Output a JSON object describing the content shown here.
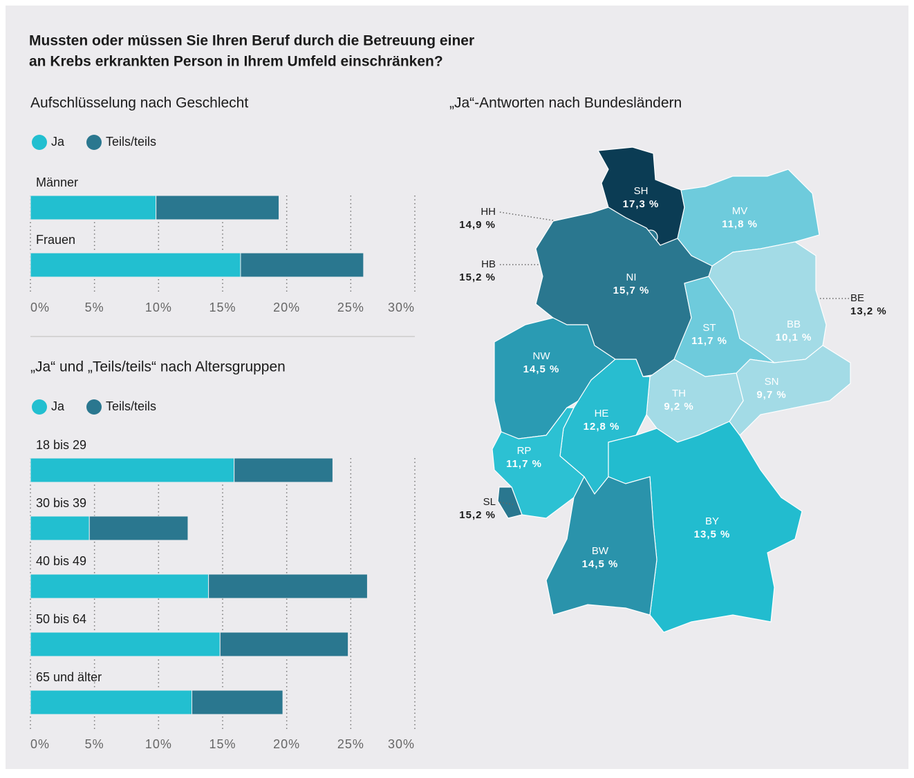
{
  "title": [
    "Mussten oder müssen Sie Ihren Beruf durch die Betreuung einer",
    "an Krebs erkrankten Person in Ihrem Umfeld einschränken?"
  ],
  "chart_data": [
    {
      "type": "bar",
      "orientation": "horizontal",
      "stacked": true,
      "subtitle": "Aufschlüsselung nach Geschlecht",
      "categories": [
        "Männer",
        "Frauen"
      ],
      "series": [
        {
          "name": "Ja",
          "color": "#22bfd0",
          "values": [
            9.8,
            16.4
          ]
        },
        {
          "name": "Teils/teils",
          "color": "#2a778f",
          "values": [
            9.6,
            9.6
          ]
        }
      ],
      "xlim": [
        0,
        30
      ],
      "xticks": [
        {
          "value": 0,
          "label": "0%"
        },
        {
          "value": 5,
          "label": "5%"
        },
        {
          "value": 10,
          "label": "10%"
        },
        {
          "value": 15,
          "label": "15%"
        },
        {
          "value": 20,
          "label": "20%"
        },
        {
          "value": 25,
          "label": "25%"
        },
        {
          "value": 30,
          "label": "30%"
        }
      ],
      "grid": true
    },
    {
      "type": "bar",
      "orientation": "horizontal",
      "stacked": true,
      "subtitle": "„Ja“ und „Teils/teils“ nach Altersgruppen",
      "categories": [
        "18 bis 29",
        "30 bis 39",
        "40 bis 49",
        "50 bis 64",
        "65 und älter"
      ],
      "series": [
        {
          "name": "Ja",
          "color": "#22bfd0",
          "values": [
            15.9,
            4.6,
            13.9,
            14.8,
            12.6
          ]
        },
        {
          "name": "Teils/teils",
          "color": "#2a778f",
          "values": [
            7.7,
            7.7,
            12.4,
            10.0,
            7.1
          ]
        }
      ],
      "xlim": [
        0,
        30
      ],
      "xticks": [
        {
          "value": 0,
          "label": "0%"
        },
        {
          "value": 5,
          "label": "5%"
        },
        {
          "value": 10,
          "label": "10%"
        },
        {
          "value": 15,
          "label": "15%"
        },
        {
          "value": 20,
          "label": "20%"
        },
        {
          "value": 25,
          "label": "25%"
        },
        {
          "value": 30,
          "label": "30%"
        }
      ],
      "grid": true
    },
    {
      "type": "map",
      "subtitle": "„Ja“-Antworten nach Bundesländern",
      "categories": [
        "SH",
        "HH",
        "MV",
        "HB",
        "NI",
        "BE",
        "BB",
        "ST",
        "NW",
        "SN",
        "TH",
        "HE",
        "RP",
        "SL",
        "BY",
        "BW"
      ],
      "values": [
        17.3,
        14.9,
        11.8,
        15.2,
        15.7,
        13.2,
        10.1,
        11.7,
        14.5,
        9.7,
        9.2,
        12.8,
        11.7,
        15.2,
        13.5,
        14.5
      ],
      "value_labels": [
        "17,3 %",
        "14,9 %",
        "11,8 %",
        "15,2 %",
        "15,7 %",
        "13,2 %",
        "10,1 %",
        "11,7 %",
        "14,5 %",
        "9,7 %",
        "9,2 %",
        "12,8 %",
        "11,7 %",
        "15,2 %",
        "13,5 %",
        "14,5 %"
      ],
      "colors": [
        "#0b3c54",
        "#2a778f",
        "#6ecbdc",
        "#2a778f",
        "#2a778f",
        "#26bcd0",
        "#a3dbe6",
        "#6ecbdc",
        "#2a9bb3",
        "#a3dbe6",
        "#a3dbe6",
        "#28bdd0",
        "#2cc1d3",
        "#2a778f",
        "#22bccf",
        "#2a93ab"
      ]
    }
  ]
}
